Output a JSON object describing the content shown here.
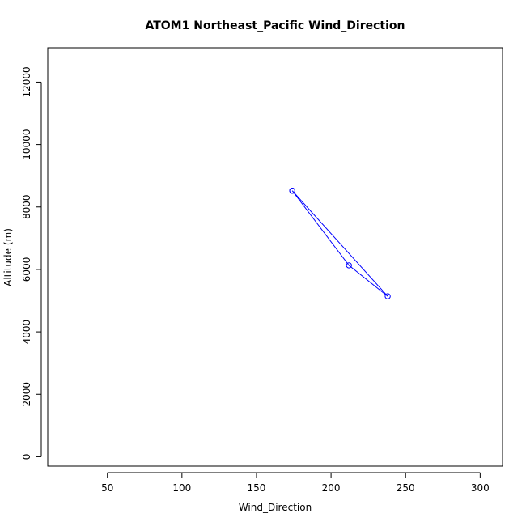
{
  "chart_data": {
    "type": "line",
    "title": "ATOM1 Northeast_Pacific Wind_Direction",
    "xlabel": "Wind_Direction",
    "ylabel": "Altitude (m)",
    "xlim": [
      10,
      315
    ],
    "ylim": [
      -300,
      13100
    ],
    "xticks": [
      50,
      100,
      150,
      200,
      250,
      300
    ],
    "yticks": [
      0,
      2000,
      4000,
      6000,
      8000,
      10000,
      12000
    ],
    "grid": false,
    "legend": "none",
    "series": [
      {
        "color": "#0000ff",
        "marker": "open-circle",
        "points": [
          [
            174,
            8520
          ],
          [
            212,
            6130
          ],
          [
            238,
            5140
          ],
          [
            174,
            8520
          ]
        ]
      }
    ]
  }
}
